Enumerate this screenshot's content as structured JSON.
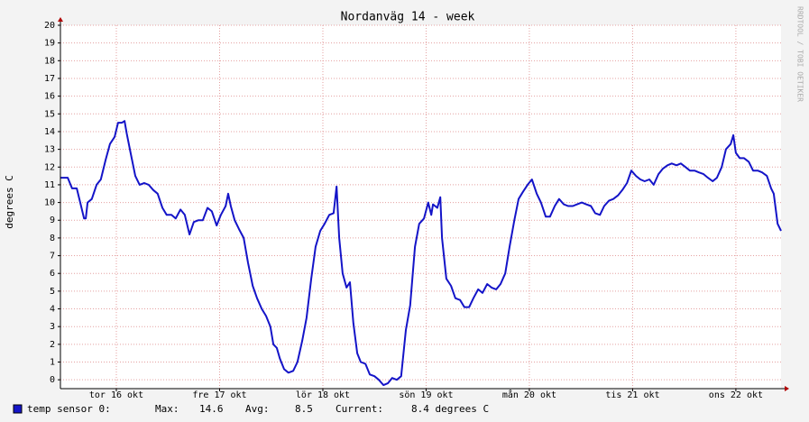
{
  "chart_data": {
    "type": "line",
    "title": "Nordanväg 14 - week",
    "y_label": "degrees C",
    "side_text": "RRDTOOL / TOBI OETIKER",
    "xlim": [
      0,
      167.5
    ],
    "xticks": [
      {
        "value": 13,
        "label": "tor 16 okt"
      },
      {
        "value": 37,
        "label": "fre 17 okt"
      },
      {
        "value": 61,
        "label": "lör 18 okt"
      },
      {
        "value": 85,
        "label": "sön 19 okt"
      },
      {
        "value": 109,
        "label": "mån 20 okt"
      },
      {
        "value": 133,
        "label": "tis 21 okt"
      },
      {
        "value": 157,
        "label": "ons 22 okt"
      }
    ],
    "ylim": [
      -0.5,
      20
    ],
    "yticks": [
      0,
      1,
      2,
      3,
      4,
      5,
      6,
      7,
      8,
      9,
      10,
      11,
      12,
      13,
      14,
      15,
      16,
      17,
      18,
      19,
      20
    ],
    "grid": true,
    "x": [
      0,
      1.7,
      2.7,
      3.8,
      4.8,
      5.5,
      5.9,
      6.3,
      7.3,
      8.4,
      9.4,
      10.5,
      11.5,
      12.6,
      13.4,
      14.3,
      14.9,
      15.4,
      16.4,
      17.4,
      18.4,
      19.5,
      20.5,
      21.6,
      22.6,
      23.7,
      24.7,
      25.8,
      26.8,
      27.9,
      28.9,
      30.0,
      31.0,
      32.1,
      33.1,
      34.2,
      35.2,
      36.3,
      37.3,
      38.4,
      39.0,
      39.6,
      40.5,
      41.5,
      42.6,
      43.6,
      44.7,
      45.7,
      46.8,
      47.8,
      48.8,
      49.5,
      50.3,
      51.0,
      52.0,
      53.0,
      54.1,
      55.1,
      56.2,
      57.2,
      58.3,
      59.3,
      60.4,
      61.4,
      62.5,
      63.5,
      64.2,
      64.8,
      65.6,
      66.5,
      67.3,
      68.1,
      69.0,
      69.8,
      70.9,
      71.9,
      73.0,
      74.0,
      75.1,
      76.1,
      77.1,
      78.2,
      79.2,
      80.3,
      81.3,
      82.4,
      83.4,
      84.5,
      85.5,
      86.2,
      86.6,
      87.6,
      88.3,
      88.7,
      89.7,
      90.8,
      91.8,
      92.9,
      93.9,
      95.0,
      96.0,
      97.1,
      98.1,
      99.2,
      100.2,
      101.3,
      102.3,
      103.4,
      104.4,
      105.5,
      106.5,
      107.5,
      108.6,
      109.6,
      110.7,
      111.7,
      112.8,
      113.8,
      114.9,
      115.9,
      117.0,
      118.0,
      119.1,
      120.1,
      121.2,
      122.2,
      123.3,
      124.3,
      125.4,
      126.4,
      127.5,
      128.5,
      129.6,
      130.6,
      131.7,
      132.7,
      133.8,
      134.8,
      135.8,
      136.9,
      137.9,
      139.0,
      140.0,
      141.1,
      142.1,
      143.2,
      144.2,
      145.3,
      146.3,
      147.4,
      148.4,
      149.5,
      150.5,
      151.6,
      152.6,
      153.7,
      154.7,
      155.8,
      156.4,
      157.0,
      157.9,
      158.9,
      160.0,
      161.0,
      162.1,
      163.1,
      164.2,
      165.2,
      165.8,
      166.7,
      167.5
    ],
    "series": [
      {
        "name": "temp sensor 0:",
        "color": "#1414c8",
        "values": [
          11.4,
          11.4,
          10.8,
          10.8,
          9.8,
          9.1,
          9.1,
          10.0,
          10.2,
          11.0,
          11.3,
          12.4,
          13.3,
          13.7,
          14.5,
          14.5,
          14.6,
          13.9,
          12.7,
          11.5,
          11.0,
          11.1,
          11.0,
          10.7,
          10.5,
          9.7,
          9.3,
          9.3,
          9.1,
          9.6,
          9.3,
          8.2,
          8.9,
          9.0,
          9.0,
          9.7,
          9.5,
          8.7,
          9.3,
          9.8,
          10.5,
          9.8,
          9.0,
          8.5,
          8.0,
          6.6,
          5.3,
          4.6,
          4.0,
          3.6,
          3.0,
          2.0,
          1.8,
          1.2,
          0.6,
          0.4,
          0.5,
          1.0,
          2.2,
          3.5,
          5.7,
          7.5,
          8.4,
          8.8,
          9.3,
          9.4,
          10.9,
          8.0,
          6.0,
          5.2,
          5.5,
          3.2,
          1.5,
          1.0,
          0.9,
          0.3,
          0.2,
          0.0,
          -0.3,
          -0.2,
          0.1,
          0.0,
          0.2,
          2.8,
          4.2,
          7.5,
          8.8,
          9.1,
          10.0,
          9.3,
          9.9,
          9.7,
          10.3,
          8.0,
          5.7,
          5.3,
          4.6,
          4.5,
          4.1,
          4.1,
          4.6,
          5.1,
          4.9,
          5.4,
          5.2,
          5.1,
          5.4,
          6.0,
          7.5,
          9.0,
          10.2,
          10.6,
          11.0,
          11.3,
          10.5,
          10.0,
          9.2,
          9.2,
          9.8,
          10.2,
          9.9,
          9.8,
          9.8,
          9.9,
          10.0,
          9.9,
          9.8,
          9.4,
          9.3,
          9.8,
          10.1,
          10.2,
          10.4,
          10.7,
          11.1,
          11.8,
          11.5,
          11.3,
          11.2,
          11.3,
          11.0,
          11.6,
          11.9,
          12.1,
          12.2,
          12.1,
          12.2,
          12.0,
          11.8,
          11.8,
          11.7,
          11.6,
          11.4,
          11.2,
          11.4,
          12.0,
          13.0,
          13.3,
          13.8,
          12.8,
          12.5,
          12.5,
          12.3,
          11.8,
          11.8,
          11.7,
          11.5,
          10.8,
          10.5,
          8.8,
          8.4
        ]
      }
    ],
    "legend": {
      "max_label": "Max:",
      "max_value": "14.6",
      "avg_label": "Avg:",
      "avg_value": "8.5",
      "current_label": "Current:",
      "current_value": "8.4 degrees C"
    }
  }
}
